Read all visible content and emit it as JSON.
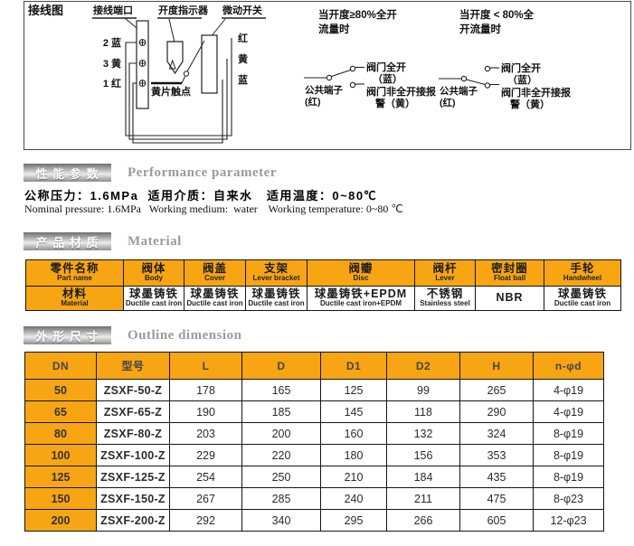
{
  "colors": {
    "accent_orange": "#F7A513",
    "banner_text": "#ffffff",
    "heading_gray": "#9b9b9b"
  },
  "wiring": {
    "section_label": "接线图",
    "labels": {
      "terminal_port": "接线端口",
      "opening_indicator": "开度指示器",
      "micro_switch": "微动开关",
      "yellow_contact": "黄片触点",
      "terminal_2": "2 蓝",
      "terminal_3": "3 黄",
      "terminal_1": "1 红",
      "wire_red": "红",
      "wire_yellow": "黄",
      "wire_blue": "蓝"
    },
    "circuit_open": {
      "title_line1": "当开度≥80%全开",
      "title_line2": "流量时",
      "common_label": "公共端子",
      "common_sub": "(红)",
      "open_label": "阀门全开",
      "open_sub": "（蓝）",
      "alarm_label": "阀门非全开接报",
      "alarm_label2": "警（黄）"
    },
    "circuit_closed": {
      "title_line1": "当开度 < 80%全",
      "title_line2": "开流量时",
      "common_label": "公共端子",
      "common_sub": "(红)",
      "open_label": "阀门全开",
      "open_sub": "（蓝）",
      "alarm_label": "阀门非全开接报",
      "alarm_label2": "警（黄）"
    }
  },
  "performance": {
    "heading_cn": "性 能 参 数",
    "heading_en": "Performance parameter",
    "line_cn": "公称压力：1.6MPa  适用介质：自来水   适用温度：0~80℃",
    "line_en": "Nominal pressure: 1.6MPa   Working medium:  water    Working temperature: 0~80 ℃"
  },
  "material": {
    "heading_cn": "产 品 材 质",
    "heading_en": "Material",
    "columns": [
      {
        "cn": "零件名称",
        "en": "Part name"
      },
      {
        "cn": "阀体",
        "en": "Body"
      },
      {
        "cn": "阀盖",
        "en": "Cover"
      },
      {
        "cn": "支架",
        "en": "Lever bracket"
      },
      {
        "cn": "阀瓣",
        "en": "Disc"
      },
      {
        "cn": "阀杆",
        "en": "Lever"
      },
      {
        "cn": "密封圈",
        "en": "Float ball"
      },
      {
        "cn": "手轮",
        "en": "Handwheel"
      }
    ],
    "values": [
      {
        "cn": "材料",
        "en": "Material"
      },
      {
        "cn": "球墨铸铁",
        "en": "Ductile cast iron"
      },
      {
        "cn": "球墨铸铁",
        "en": "Ductile cast iron"
      },
      {
        "cn": "球墨铸铁",
        "en": "Ductile cast iron"
      },
      {
        "cn": "球墨铸铁+EPDM",
        "en": "Ductile cast iron+EPDM"
      },
      {
        "cn": "不锈钢",
        "en": "Stainless steel"
      },
      {
        "cn": "NBR",
        "en": ""
      },
      {
        "cn": "球墨铸铁",
        "en": "Ductile cast iron"
      }
    ]
  },
  "dimensions": {
    "heading_cn": "外 形 尺 寸",
    "heading_en": "Outline dimension",
    "columns": [
      "DN",
      "型号",
      "L",
      "D",
      "D1",
      "D2",
      "H",
      "n-φd"
    ],
    "rows": [
      [
        "50",
        "ZSXF-50-Z",
        "178",
        "165",
        "125",
        "99",
        "265",
        "4-φ19"
      ],
      [
        "65",
        "ZSXF-65-Z",
        "190",
        "185",
        "145",
        "118",
        "290",
        "4-φ19"
      ],
      [
        "80",
        "ZSXF-80-Z",
        "203",
        "200",
        "160",
        "132",
        "324",
        "8-φ19"
      ],
      [
        "100",
        "ZSXF-100-Z",
        "229",
        "220",
        "180",
        "156",
        "353",
        "8-φ19"
      ],
      [
        "125",
        "ZSXF-125-Z",
        "254",
        "250",
        "210",
        "184",
        "435",
        "8-φ19"
      ],
      [
        "150",
        "ZSXF-150-Z",
        "267",
        "285",
        "240",
        "211",
        "475",
        "8-φ23"
      ],
      [
        "200",
        "ZSXF-200-Z",
        "292",
        "340",
        "295",
        "266",
        "605",
        "12-φ23"
      ]
    ]
  }
}
